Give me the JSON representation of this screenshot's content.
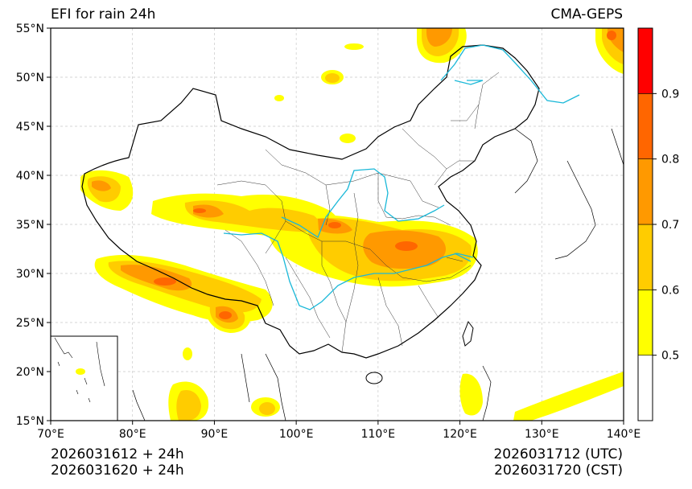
{
  "title": "EFI for rain 24h",
  "model": "CMA-GEPS",
  "init_time": {
    "utc_line": "2026031612 + 24h",
    "cst_line": "2026031620 + 24h"
  },
  "valid_time": {
    "utc_line": "2026031712 (UTC)",
    "cst_line": "2026031720 (CST)"
  },
  "map": {
    "lon_range": [
      70,
      140
    ],
    "lat_range": [
      15,
      55
    ],
    "lon_ticks": [
      {
        "value": 70,
        "label": "70°E"
      },
      {
        "value": 80,
        "label": "80°E"
      },
      {
        "value": 90,
        "label": "90°E"
      },
      {
        "value": 100,
        "label": "100°E"
      },
      {
        "value": 110,
        "label": "110°E"
      },
      {
        "value": 120,
        "label": "120°E"
      },
      {
        "value": 130,
        "label": "130°E"
      },
      {
        "value": 140,
        "label": "140°E"
      }
    ],
    "lat_ticks": [
      {
        "value": 15,
        "label": "15°N"
      },
      {
        "value": 20,
        "label": "20°N"
      },
      {
        "value": 25,
        "label": "25°N"
      },
      {
        "value": 30,
        "label": "30°N"
      },
      {
        "value": 35,
        "label": "35°N"
      },
      {
        "value": 40,
        "label": "40°N"
      },
      {
        "value": 45,
        "label": "45°N"
      },
      {
        "value": 50,
        "label": "50°N"
      },
      {
        "value": 55,
        "label": "55°N"
      }
    ],
    "grid": true
  },
  "colorbar": {
    "levels": [
      {
        "value": 0.5,
        "label": "0.5"
      },
      {
        "value": 0.6,
        "label": "0.6"
      },
      {
        "value": 0.7,
        "label": "0.7"
      },
      {
        "value": 0.8,
        "label": "0.8"
      },
      {
        "value": 0.9,
        "label": "0.9"
      }
    ],
    "colors": [
      "#ffffff",
      "#ffff00",
      "#ffcc00",
      "#ff9900",
      "#ff6600",
      "#ff0000"
    ]
  },
  "colors": {
    "border": "#000000",
    "province": "#333333",
    "river": "#1ab8d8",
    "grid": "#c8c8c8"
  }
}
